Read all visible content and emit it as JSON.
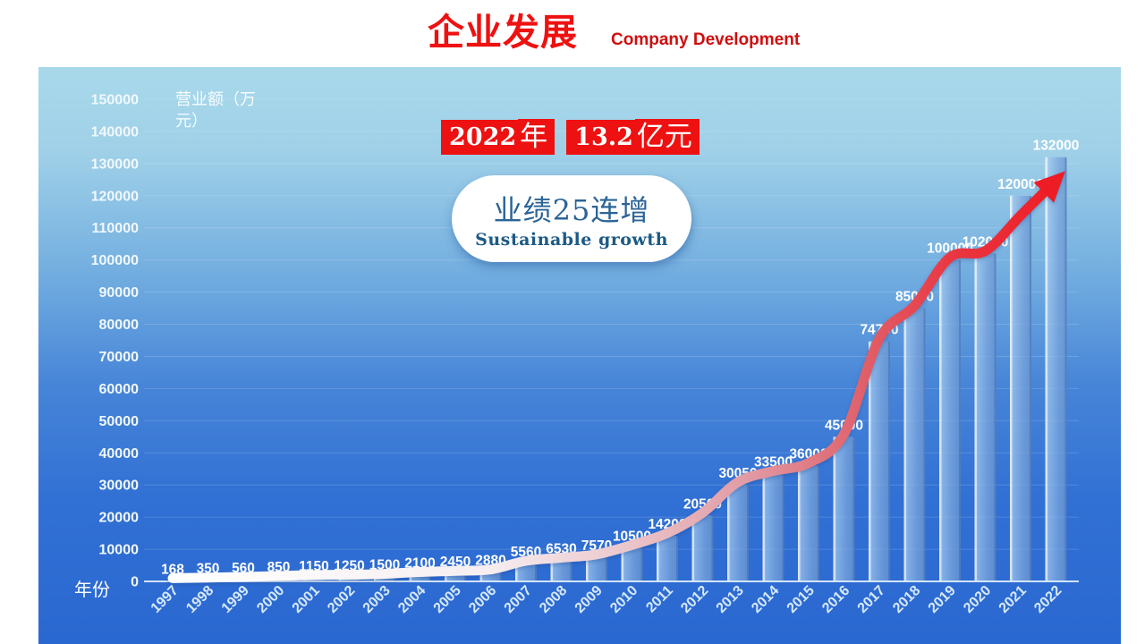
{
  "header": {
    "title_cn": "企业发展",
    "title_en": "Company Development"
  },
  "callout": {
    "year_num": "2022",
    "year_unit": "年",
    "value_num": "13.2",
    "value_unit": "亿元"
  },
  "bubble": {
    "cn_prefix": "业绩",
    "cn_number": "25",
    "cn_suffix": "连增",
    "en": "Sustainable growth"
  },
  "axes": {
    "y_title": "营业额（万元）",
    "x_title": "年份"
  },
  "colors": {
    "title_red": "#ee1111",
    "subtitle_red": "#cf0e0e",
    "callout_bg": "#ee1111",
    "bubble_text": "#2b6496",
    "panel_top": "#a8d9ea",
    "panel_bottom": "#2a68d1",
    "bar_blue": "#6f9fd9",
    "arrow_red": "#ee1c24"
  },
  "chart_data": {
    "type": "bar",
    "title": "企业发展 Company Development",
    "categories": [
      "1997",
      "1998",
      "1999",
      "2000",
      "2001",
      "2002",
      "2003",
      "2004",
      "2005",
      "2006",
      "2007",
      "2008",
      "2009",
      "2010",
      "2011",
      "2012",
      "2013",
      "2014",
      "2015",
      "2016",
      "2017",
      "2018",
      "2019",
      "2020",
      "2021",
      "2022"
    ],
    "values": [
      168,
      350,
      560,
      850,
      1150,
      1250,
      1500,
      2100,
      2450,
      2880,
      5560,
      6530,
      7570,
      10500,
      14200,
      20500,
      30050,
      33500,
      36000,
      45000,
      74700,
      85000,
      100000,
      102000,
      120000,
      132000
    ],
    "xlabel": "年份",
    "ylabel": "营业额（万元）",
    "ylim": [
      0,
      150000
    ],
    "ytick_step": 10000,
    "grid": "horizontal",
    "legend": "none",
    "annotation": "white-to-red smoothed trend arrow following bar tops, arrowhead at 2022 bar"
  }
}
